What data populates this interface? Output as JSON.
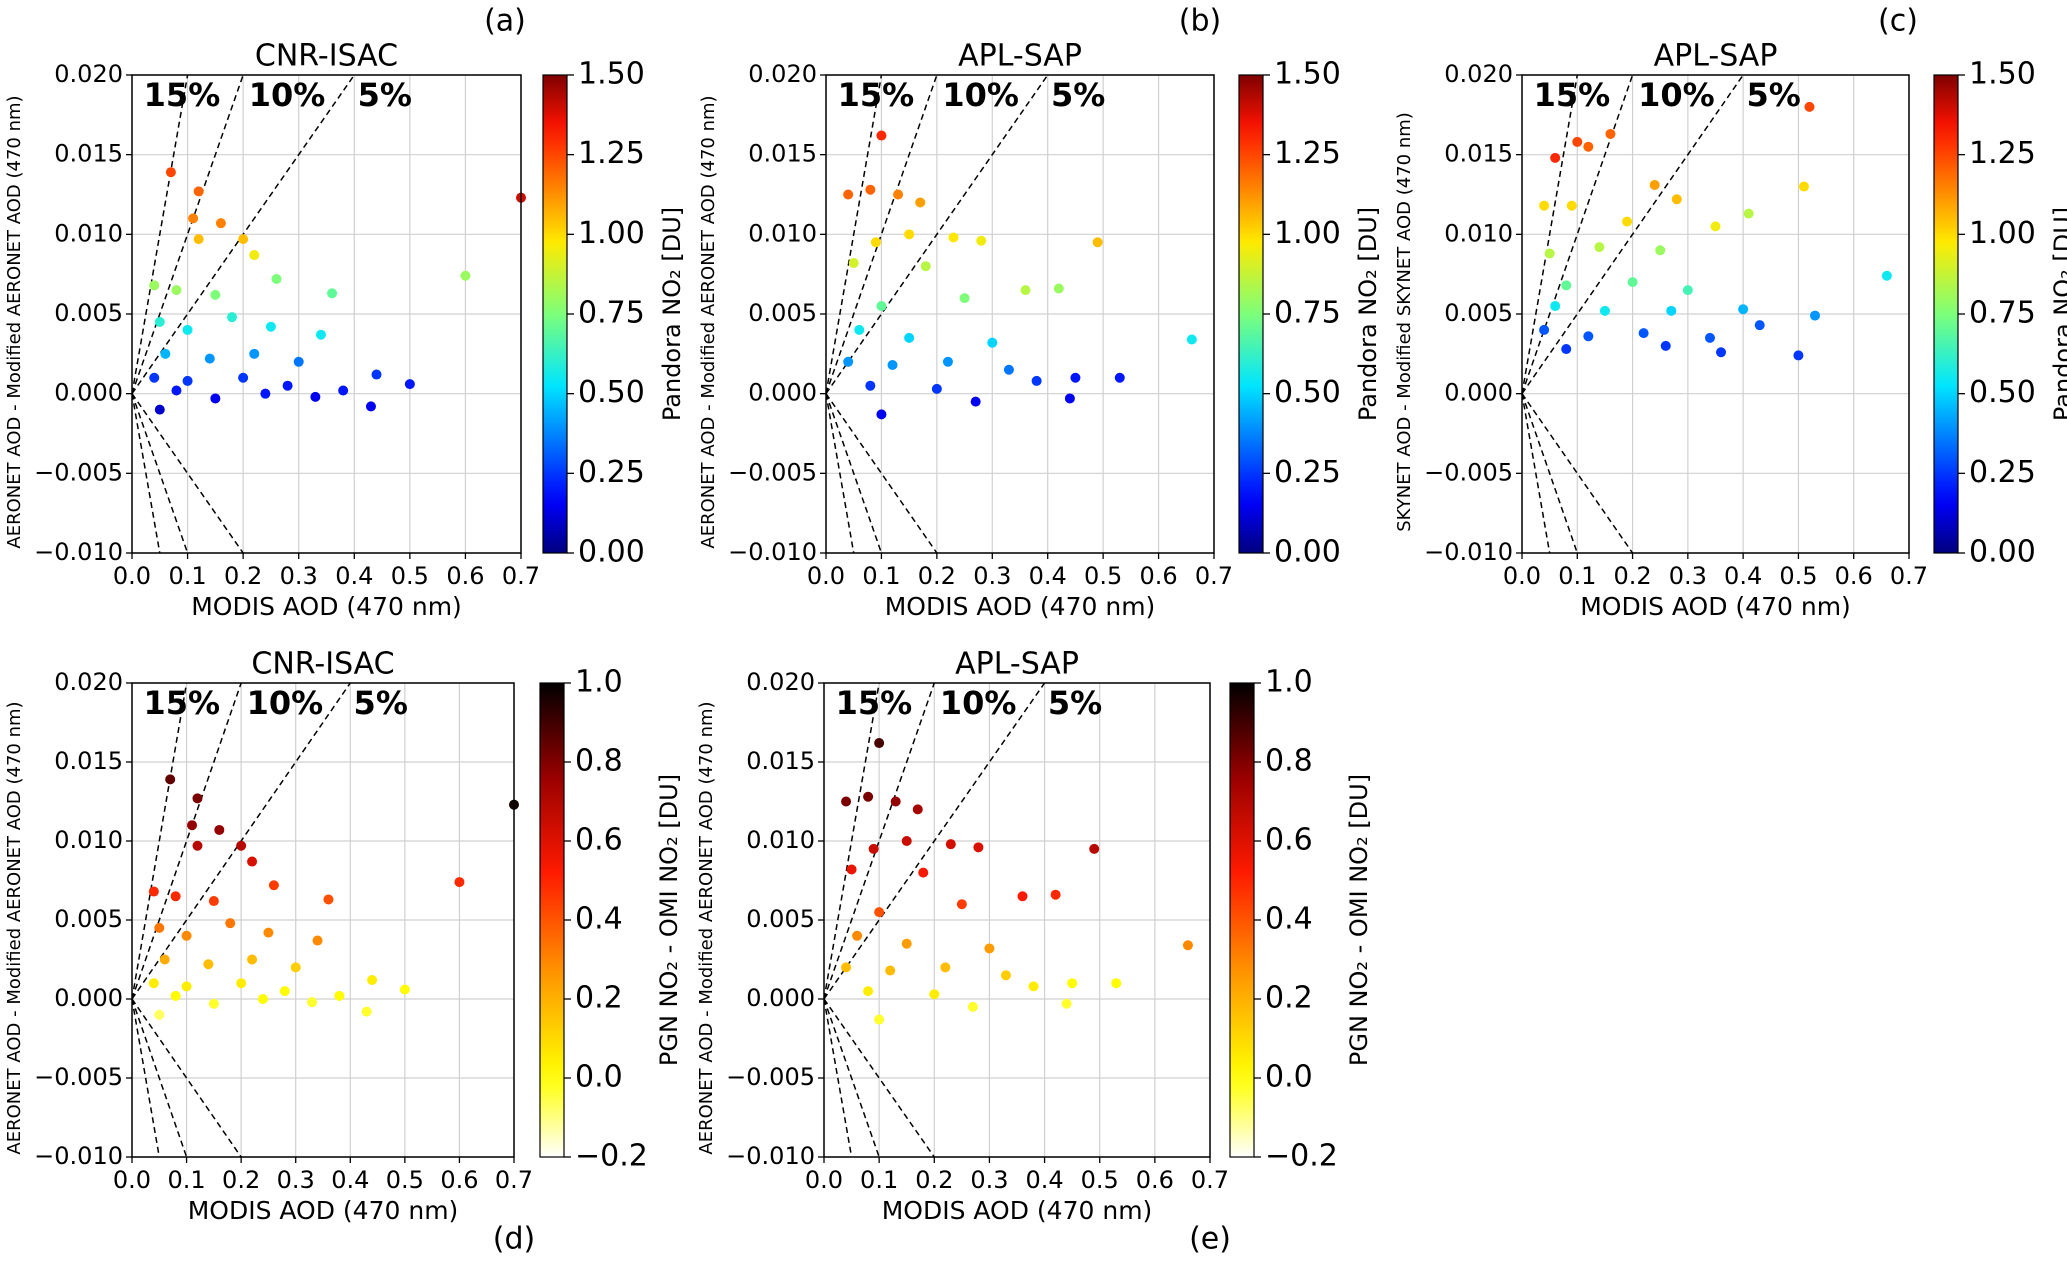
{
  "chart_data": [
    {
      "type": "scatter",
      "panel_label": "(a)",
      "title": "CNR-ISAC",
      "xlabel": "MODIS AOD (470 nm)",
      "ylabel": "AERONET AOD - Modified AERONET AOD (470 nm)",
      "colorbar_label": "Pandora NO₂ [DU]",
      "colormap": "jet",
      "grid": true,
      "xlim": [
        0,
        0.7
      ],
      "ylim": [
        -0.01,
        0.02
      ],
      "clim": [
        0,
        1.5
      ],
      "xticks": [
        {
          "value": 0,
          "label": "0.0"
        },
        {
          "value": 0.1,
          "label": "0.1"
        },
        {
          "value": 0.2,
          "label": "0.2"
        },
        {
          "value": 0.3,
          "label": "0.3"
        },
        {
          "value": 0.4,
          "label": "0.4"
        },
        {
          "value": 0.5,
          "label": "0.5"
        },
        {
          "value": 0.6,
          "label": "0.6"
        },
        {
          "value": 0.7,
          "label": "0.7"
        }
      ],
      "yticks": [
        {
          "value": -0.01,
          "label": "−0.010"
        },
        {
          "value": -0.005,
          "label": "−0.005"
        },
        {
          "value": 0,
          "label": "0.000"
        },
        {
          "value": 0.005,
          "label": "0.005"
        },
        {
          "value": 0.01,
          "label": "0.010"
        },
        {
          "value": 0.015,
          "label": "0.015"
        },
        {
          "value": 0.02,
          "label": "0.020"
        }
      ],
      "cticks": [
        {
          "value": 0,
          "label": "0.00"
        },
        {
          "value": 0.25,
          "label": "0.25"
        },
        {
          "value": 0.5,
          "label": "0.50"
        },
        {
          "value": 0.75,
          "label": "0.75"
        },
        {
          "value": 1,
          "label": "1.00"
        },
        {
          "value": 1.25,
          "label": "1.25"
        },
        {
          "value": 1.5,
          "label": "1.50"
        }
      ],
      "reference_lines": [
        {
          "label": "15%",
          "slope": 0.2
        },
        {
          "label": "10%",
          "slope": 0.1
        },
        {
          "label": "5%",
          "slope": 0.05
        }
      ],
      "x": [
        0.07,
        0.12,
        0.11,
        0.16,
        0.12,
        0.2,
        0.22,
        0.04,
        0.08,
        0.15,
        0.26,
        0.36,
        0.6,
        0.7,
        0.05,
        0.1,
        0.18,
        0.25,
        0.34,
        0.06,
        0.14,
        0.22,
        0.3,
        0.04,
        0.1,
        0.2,
        0.28,
        0.38,
        0.44,
        0.5,
        0.43,
        0.05,
        0.15,
        0.33,
        0.08,
        0.24
      ],
      "values": [
        0.0139,
        0.0127,
        0.011,
        0.0107,
        0.0097,
        0.0097,
        0.0087,
        0.0068,
        0.0065,
        0.0062,
        0.0072,
        0.0063,
        0.0074,
        0.0123,
        0.0045,
        0.004,
        0.0048,
        0.0042,
        0.0037,
        0.0025,
        0.0022,
        0.0025,
        0.002,
        0.001,
        0.0008,
        0.001,
        0.0005,
        0.0002,
        0.0012,
        0.0006,
        -0.0008,
        -0.001,
        -0.0003,
        -0.0002,
        0.0002,
        0
      ],
      "color_values": [
        1.25,
        1.2,
        1.15,
        1.15,
        1.05,
        1.05,
        0.95,
        0.8,
        0.8,
        0.75,
        0.75,
        0.7,
        0.8,
        1.4,
        0.6,
        0.55,
        0.6,
        0.55,
        0.55,
        0.45,
        0.4,
        0.4,
        0.35,
        0.25,
        0.25,
        0.25,
        0.2,
        0.2,
        0.25,
        0.2,
        0.15,
        0.1,
        0.15,
        0.15,
        0.2,
        0.2
      ]
    },
    {
      "type": "scatter",
      "panel_label": "(b)",
      "title": "APL-SAP",
      "xlabel": "MODIS AOD (470 nm)",
      "ylabel": "AERONET AOD - Modified AERONET AOD (470 nm)",
      "colorbar_label": "Pandora NO₂ [DU]",
      "colormap": "jet",
      "grid": true,
      "xlim": [
        0,
        0.7
      ],
      "ylim": [
        -0.01,
        0.02
      ],
      "clim": [
        0,
        1.5
      ],
      "xticks": [
        {
          "value": 0,
          "label": "0.0"
        },
        {
          "value": 0.1,
          "label": "0.1"
        },
        {
          "value": 0.2,
          "label": "0.2"
        },
        {
          "value": 0.3,
          "label": "0.3"
        },
        {
          "value": 0.4,
          "label": "0.4"
        },
        {
          "value": 0.5,
          "label": "0.5"
        },
        {
          "value": 0.6,
          "label": "0.6"
        },
        {
          "value": 0.7,
          "label": "0.7"
        }
      ],
      "yticks": [
        {
          "value": -0.01,
          "label": "−0.010"
        },
        {
          "value": -0.005,
          "label": "−0.005"
        },
        {
          "value": 0,
          "label": "0.000"
        },
        {
          "value": 0.005,
          "label": "0.005"
        },
        {
          "value": 0.01,
          "label": "0.010"
        },
        {
          "value": 0.015,
          "label": "0.015"
        },
        {
          "value": 0.02,
          "label": "0.020"
        }
      ],
      "cticks": [
        {
          "value": 0,
          "label": "0.00"
        },
        {
          "value": 0.25,
          "label": "0.25"
        },
        {
          "value": 0.5,
          "label": "0.50"
        },
        {
          "value": 0.75,
          "label": "0.75"
        },
        {
          "value": 1,
          "label": "1.00"
        },
        {
          "value": 1.25,
          "label": "1.25"
        },
        {
          "value": 1.5,
          "label": "1.50"
        }
      ],
      "reference_lines": [
        {
          "label": "15%",
          "slope": 0.2
        },
        {
          "label": "10%",
          "slope": 0.1
        },
        {
          "label": "5%",
          "slope": 0.05
        }
      ],
      "x": [
        0.1,
        0.04,
        0.08,
        0.13,
        0.17,
        0.09,
        0.15,
        0.23,
        0.28,
        0.49,
        0.05,
        0.18,
        0.36,
        0.42,
        0.1,
        0.25,
        0.66,
        0.06,
        0.15,
        0.3,
        0.04,
        0.12,
        0.22,
        0.33,
        0.08,
        0.2,
        0.38,
        0.45,
        0.53,
        0.1,
        0.27,
        0.44
      ],
      "values": [
        0.0162,
        0.0125,
        0.0128,
        0.0125,
        0.012,
        0.0095,
        0.01,
        0.0098,
        0.0096,
        0.0095,
        0.0082,
        0.008,
        0.0065,
        0.0066,
        0.0055,
        0.006,
        0.0034,
        0.004,
        0.0035,
        0.0032,
        0.002,
        0.0018,
        0.002,
        0.0015,
        0.0005,
        0.0003,
        0.0008,
        0.001,
        0.001,
        -0.0013,
        -0.0005,
        -0.0003
      ],
      "color_values": [
        1.3,
        1.2,
        1.2,
        1.15,
        1.1,
        1.0,
        1.0,
        0.98,
        0.95,
        1.05,
        0.9,
        0.85,
        0.85,
        0.8,
        0.7,
        0.75,
        0.55,
        0.55,
        0.5,
        0.5,
        0.4,
        0.4,
        0.4,
        0.35,
        0.25,
        0.25,
        0.25,
        0.2,
        0.2,
        0.15,
        0.15,
        0.15
      ]
    },
    {
      "type": "scatter",
      "panel_label": "(c)",
      "title": "APL-SAP",
      "xlabel": "MODIS AOD (470 nm)",
      "ylabel": "SKYNET AOD - Modified SKYNET AOD (470 nm)",
      "colorbar_label": "Pandora NO₂ [DU]",
      "colormap": "jet",
      "grid": true,
      "xlim": [
        0,
        0.7
      ],
      "ylim": [
        -0.01,
        0.02
      ],
      "clim": [
        0,
        1.5
      ],
      "xticks": [
        {
          "value": 0,
          "label": "0.0"
        },
        {
          "value": 0.1,
          "label": "0.1"
        },
        {
          "value": 0.2,
          "label": "0.2"
        },
        {
          "value": 0.3,
          "label": "0.3"
        },
        {
          "value": 0.4,
          "label": "0.4"
        },
        {
          "value": 0.5,
          "label": "0.5"
        },
        {
          "value": 0.6,
          "label": "0.6"
        },
        {
          "value": 0.7,
          "label": "0.7"
        }
      ],
      "yticks": [
        {
          "value": -0.01,
          "label": "−0.010"
        },
        {
          "value": -0.005,
          "label": "−0.005"
        },
        {
          "value": 0,
          "label": "0.000"
        },
        {
          "value": 0.005,
          "label": "0.005"
        },
        {
          "value": 0.01,
          "label": "0.010"
        },
        {
          "value": 0.015,
          "label": "0.015"
        },
        {
          "value": 0.02,
          "label": "0.020"
        }
      ],
      "cticks": [
        {
          "value": 0,
          "label": "0.00"
        },
        {
          "value": 0.25,
          "label": "0.25"
        },
        {
          "value": 0.5,
          "label": "0.50"
        },
        {
          "value": 0.75,
          "label": "0.75"
        },
        {
          "value": 1,
          "label": "1.00"
        },
        {
          "value": 1.25,
          "label": "1.25"
        },
        {
          "value": 1.5,
          "label": "1.50"
        }
      ],
      "reference_lines": [
        {
          "label": "15%",
          "slope": 0.2
        },
        {
          "label": "10%",
          "slope": 0.1
        },
        {
          "label": "5%",
          "slope": 0.05
        }
      ],
      "x": [
        0.1,
        0.16,
        0.06,
        0.52,
        0.12,
        0.24,
        0.51,
        0.04,
        0.09,
        0.19,
        0.28,
        0.35,
        0.41,
        0.05,
        0.14,
        0.25,
        0.66,
        0.08,
        0.2,
        0.3,
        0.06,
        0.15,
        0.27,
        0.4,
        0.53,
        0.04,
        0.12,
        0.22,
        0.34,
        0.43,
        0.5,
        0.08,
        0.26,
        0.36
      ],
      "values": [
        0.0158,
        0.0163,
        0.0148,
        0.018,
        0.0155,
        0.0131,
        0.013,
        0.0118,
        0.0118,
        0.0108,
        0.0122,
        0.0105,
        0.0113,
        0.0088,
        0.0092,
        0.009,
        0.0074,
        0.0068,
        0.007,
        0.0065,
        0.0055,
        0.0052,
        0.0052,
        0.0053,
        0.0049,
        0.004,
        0.0036,
        0.0038,
        0.0035,
        0.0043,
        0.0024,
        0.0028,
        0.003,
        0.0026
      ],
      "color_values": [
        1.25,
        1.2,
        1.3,
        1.25,
        1.2,
        1.1,
        1.0,
        1.0,
        1.0,
        1.0,
        1.05,
        0.95,
        0.85,
        0.85,
        0.85,
        0.8,
        0.55,
        0.7,
        0.7,
        0.65,
        0.55,
        0.55,
        0.5,
        0.45,
        0.4,
        0.3,
        0.3,
        0.3,
        0.3,
        0.3,
        0.25,
        0.25,
        0.25,
        0.25
      ]
    },
    {
      "type": "scatter",
      "panel_label": "(d)",
      "title": "CNR-ISAC",
      "xlabel": "MODIS AOD (470 nm)",
      "ylabel": "AERONET AOD - Modified AERONET AOD (470 nm)",
      "colorbar_label": "PGN NO₂ - OMI NO₂ [DU]",
      "colormap": "hot_r",
      "grid": true,
      "xlim": [
        0,
        0.7
      ],
      "ylim": [
        -0.01,
        0.02
      ],
      "clim": [
        -0.2,
        1.0
      ],
      "xticks": [
        {
          "value": 0,
          "label": "0.0"
        },
        {
          "value": 0.1,
          "label": "0.1"
        },
        {
          "value": 0.2,
          "label": "0.2"
        },
        {
          "value": 0.3,
          "label": "0.3"
        },
        {
          "value": 0.4,
          "label": "0.4"
        },
        {
          "value": 0.5,
          "label": "0.5"
        },
        {
          "value": 0.6,
          "label": "0.6"
        },
        {
          "value": 0.7,
          "label": "0.7"
        }
      ],
      "yticks": [
        {
          "value": -0.01,
          "label": "−0.010"
        },
        {
          "value": -0.005,
          "label": "−0.005"
        },
        {
          "value": 0,
          "label": "0.000"
        },
        {
          "value": 0.005,
          "label": "0.005"
        },
        {
          "value": 0.01,
          "label": "0.010"
        },
        {
          "value": 0.015,
          "label": "0.015"
        },
        {
          "value": 0.02,
          "label": "0.020"
        }
      ],
      "cticks": [
        {
          "value": -0.2,
          "label": "−0.2"
        },
        {
          "value": 0,
          "label": "0.0"
        },
        {
          "value": 0.2,
          "label": "0.2"
        },
        {
          "value": 0.4,
          "label": "0.4"
        },
        {
          "value": 0.6,
          "label": "0.6"
        },
        {
          "value": 0.8,
          "label": "0.8"
        },
        {
          "value": 1.0,
          "label": "1.0"
        }
      ],
      "reference_lines": [
        {
          "label": "15%",
          "slope": 0.2
        },
        {
          "label": "10%",
          "slope": 0.1
        },
        {
          "label": "5%",
          "slope": 0.05
        }
      ],
      "x": [
        0.07,
        0.12,
        0.11,
        0.16,
        0.12,
        0.2,
        0.22,
        0.04,
        0.08,
        0.15,
        0.26,
        0.36,
        0.6,
        0.7,
        0.05,
        0.1,
        0.18,
        0.25,
        0.34,
        0.06,
        0.14,
        0.22,
        0.3,
        0.04,
        0.1,
        0.2,
        0.28,
        0.38,
        0.44,
        0.5,
        0.43,
        0.05,
        0.15,
        0.33,
        0.08,
        0.24
      ],
      "values": [
        0.0139,
        0.0127,
        0.011,
        0.0107,
        0.0097,
        0.0097,
        0.0087,
        0.0068,
        0.0065,
        0.0062,
        0.0072,
        0.0063,
        0.0074,
        0.0123,
        0.0045,
        0.004,
        0.0048,
        0.0042,
        0.0037,
        0.0025,
        0.0022,
        0.0025,
        0.002,
        0.001,
        0.0008,
        0.001,
        0.0005,
        0.0002,
        0.0012,
        0.0006,
        -0.0008,
        -0.001,
        -0.0003,
        -0.0002,
        0.0002,
        0
      ],
      "color_values": [
        0.85,
        0.81,
        0.77,
        0.77,
        0.69,
        0.69,
        0.61,
        0.49,
        0.49,
        0.45,
        0.45,
        0.41,
        0.49,
        0.97,
        0.33,
        0.29,
        0.33,
        0.29,
        0.29,
        0.21,
        0.17,
        0.17,
        0.13,
        0.05,
        0.05,
        0.05,
        0.01,
        0.01,
        0.05,
        0.01,
        -0.03,
        -0.07,
        -0.03,
        -0.03,
        0.01,
        0.01
      ]
    },
    {
      "type": "scatter",
      "panel_label": "(e)",
      "title": "APL-SAP",
      "xlabel": "MODIS AOD (470 nm)",
      "ylabel": "AERONET AOD - Modified AERONET AOD (470 nm)",
      "colorbar_label": "PGN NO₂ - OMI NO₂ [DU]",
      "colormap": "hot_r",
      "grid": true,
      "xlim": [
        0,
        0.7
      ],
      "ylim": [
        -0.01,
        0.02
      ],
      "clim": [
        -0.2,
        1.0
      ],
      "xticks": [
        {
          "value": 0,
          "label": "0.0"
        },
        {
          "value": 0.1,
          "label": "0.1"
        },
        {
          "value": 0.2,
          "label": "0.2"
        },
        {
          "value": 0.3,
          "label": "0.3"
        },
        {
          "value": 0.4,
          "label": "0.4"
        },
        {
          "value": 0.5,
          "label": "0.5"
        },
        {
          "value": 0.6,
          "label": "0.6"
        },
        {
          "value": 0.7,
          "label": "0.7"
        }
      ],
      "yticks": [
        {
          "value": -0.01,
          "label": "−0.010"
        },
        {
          "value": -0.005,
          "label": "−0.005"
        },
        {
          "value": 0,
          "label": "0.000"
        },
        {
          "value": 0.005,
          "label": "0.005"
        },
        {
          "value": 0.01,
          "label": "0.010"
        },
        {
          "value": 0.015,
          "label": "0.015"
        },
        {
          "value": 0.02,
          "label": "0.020"
        }
      ],
      "cticks": [
        {
          "value": -0.2,
          "label": "−0.2"
        },
        {
          "value": 0,
          "label": "0.0"
        },
        {
          "value": 0.2,
          "label": "0.2"
        },
        {
          "value": 0.4,
          "label": "0.4"
        },
        {
          "value": 0.6,
          "label": "0.6"
        },
        {
          "value": 0.8,
          "label": "0.8"
        },
        {
          "value": 1.0,
          "label": "1.0"
        }
      ],
      "reference_lines": [
        {
          "label": "15%",
          "slope": 0.2
        },
        {
          "label": "10%",
          "slope": 0.1
        },
        {
          "label": "5%",
          "slope": 0.05
        }
      ],
      "x": [
        0.1,
        0.04,
        0.08,
        0.13,
        0.17,
        0.09,
        0.15,
        0.23,
        0.28,
        0.49,
        0.05,
        0.18,
        0.36,
        0.42,
        0.1,
        0.25,
        0.66,
        0.06,
        0.15,
        0.3,
        0.04,
        0.12,
        0.22,
        0.33,
        0.08,
        0.2,
        0.38,
        0.45,
        0.53,
        0.1,
        0.27,
        0.44
      ],
      "values": [
        0.0162,
        0.0125,
        0.0128,
        0.0125,
        0.012,
        0.0095,
        0.01,
        0.0098,
        0.0096,
        0.0095,
        0.0082,
        0.008,
        0.0065,
        0.0066,
        0.0055,
        0.006,
        0.0034,
        0.004,
        0.0035,
        0.0032,
        0.002,
        0.0018,
        0.002,
        0.0015,
        0.0005,
        0.0003,
        0.0008,
        0.001,
        0.001,
        -0.0013,
        -0.0005,
        -0.0003
      ],
      "color_values": [
        0.89,
        0.81,
        0.81,
        0.77,
        0.73,
        0.65,
        0.65,
        0.63,
        0.61,
        0.69,
        0.57,
        0.53,
        0.53,
        0.49,
        0.41,
        0.45,
        0.29,
        0.29,
        0.25,
        0.25,
        0.17,
        0.17,
        0.17,
        0.13,
        0.05,
        0.05,
        0.05,
        0.01,
        0.01,
        -0.03,
        -0.03,
        -0.03
      ]
    }
  ]
}
